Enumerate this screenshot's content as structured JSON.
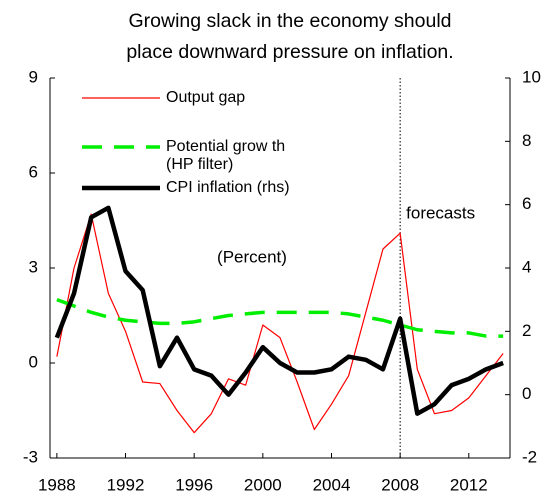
{
  "chart_data": {
    "type": "line",
    "title": "Growing slack in the economy should place downward pressure on inflation.",
    "x": [
      1988,
      1989,
      1990,
      1991,
      1992,
      1993,
      1994,
      1995,
      1996,
      1997,
      1998,
      1999,
      2000,
      2001,
      2002,
      2003,
      2004,
      2005,
      2006,
      2007,
      2008,
      2009,
      2010,
      2011,
      2012,
      2013,
      2014
    ],
    "series": [
      {
        "name": "Output gap",
        "color": "#ff0000",
        "style": "solid",
        "width": 1.2,
        "values": [
          0.2,
          3.0,
          4.7,
          2.2,
          1.0,
          -0.6,
          -0.65,
          -1.5,
          -2.2,
          -1.6,
          -0.5,
          -0.7,
          1.2,
          0.8,
          -0.6,
          -2.1,
          -1.3,
          -0.4,
          1.6,
          3.6,
          4.1,
          -0.2,
          -1.6,
          -1.5,
          -1.1,
          -0.4,
          0.3
        ]
      },
      {
        "name": "Potential grow th (HP filter)",
        "color": "#00ee00",
        "style": "dashed",
        "width": 3.5,
        "values": [
          2.0,
          1.8,
          1.6,
          1.45,
          1.35,
          1.3,
          1.25,
          1.25,
          1.3,
          1.4,
          1.5,
          1.55,
          1.6,
          1.6,
          1.6,
          1.6,
          1.6,
          1.55,
          1.45,
          1.35,
          1.2,
          1.05,
          1.0,
          0.95,
          0.95,
          0.85,
          0.85
        ]
      },
      {
        "name": "CPI inflation (rhs)",
        "color": "#000000",
        "style": "solid",
        "width": 4.5,
        "axis": "y2",
        "values": [
          1.8,
          3.2,
          5.6,
          5.9,
          3.9,
          3.3,
          0.9,
          1.8,
          0.8,
          0.6,
          0.0,
          0.7,
          1.5,
          1.0,
          0.7,
          0.7,
          0.8,
          1.2,
          1.1,
          0.8,
          2.4,
          -0.6,
          -0.3,
          0.3,
          0.5,
          0.8,
          1.0
        ]
      }
    ],
    "xlim": [
      1987.6,
      2014.4
    ],
    "xticks": [
      1988,
      1992,
      1996,
      2000,
      2004,
      2008,
      2012
    ],
    "ylim": [
      -3,
      9
    ],
    "yticks": [
      -3,
      0,
      3,
      6,
      9
    ],
    "y2lim": [
      -2,
      10
    ],
    "y2ticks": [
      -2,
      0,
      2,
      4,
      6,
      8,
      10
    ],
    "vline": 2008,
    "annotations": [
      "forecasts",
      "(Percent)"
    ],
    "grid": false
  }
}
